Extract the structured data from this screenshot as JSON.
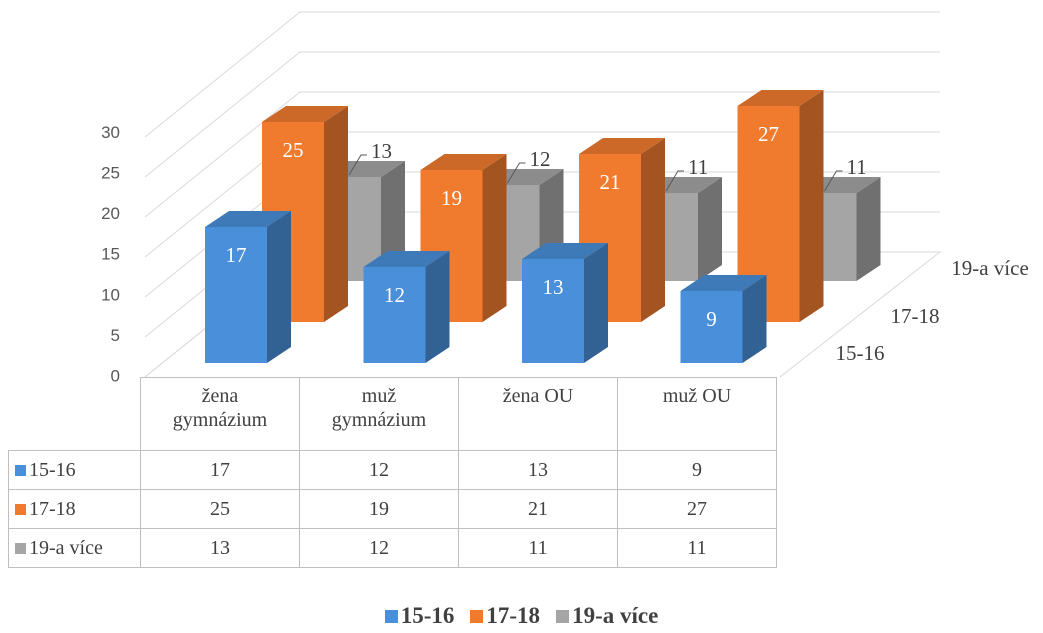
{
  "chart_data": {
    "type": "bar3d",
    "categories": [
      "žena gymnázium",
      "muž gymnázium",
      "žena OU",
      "muž OU"
    ],
    "series": [
      {
        "name": "15-16",
        "color": "#4a8fd9",
        "values": [
          17,
          12,
          13,
          9
        ]
      },
      {
        "name": "17-18",
        "color": "#f07b2f",
        "values": [
          25,
          19,
          21,
          27
        ]
      },
      {
        "name": "19-a více",
        "color": "#a5a5a5",
        "values": [
          13,
          12,
          11,
          11
        ]
      }
    ],
    "ylim": [
      0,
      30
    ],
    "yticks": [
      0,
      5,
      10,
      15,
      20,
      25,
      30
    ],
    "grid": true
  }
}
